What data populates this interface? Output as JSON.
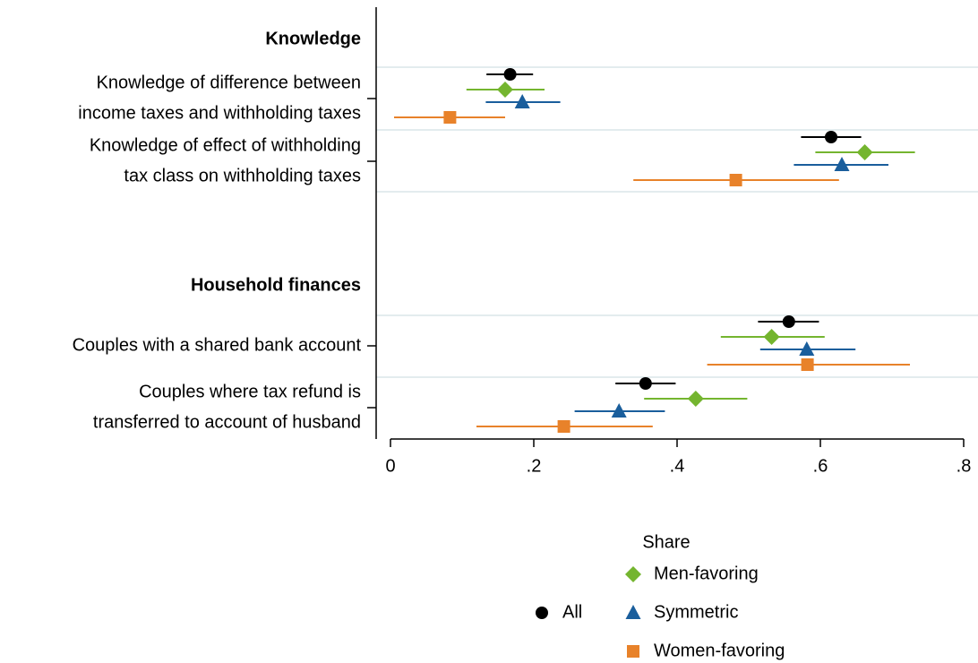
{
  "chart_data": {
    "type": "dot-ci",
    "x_label": "Share",
    "groups": [
      {
        "title": "Knowledge",
        "categories": [
          [
            "Knowledge of difference between",
            "income taxes and withholding taxes"
          ],
          [
            "Knowledge of effect of withholding",
            "tax class on withholding taxes"
          ]
        ]
      },
      {
        "title": "Household finances",
        "categories": [
          [
            "Couples with a shared bank account"
          ],
          [
            "Couples where tax refund is",
            "transferred to account of husband"
          ]
        ]
      }
    ],
    "series": [
      {
        "name": "All",
        "color": "#000000",
        "marker": "circle",
        "values": [
          [
            0.167,
            0.615
          ],
          [
            0.556,
            0.356
          ]
        ],
        "lower": [
          [
            0.134,
            0.573
          ],
          [
            0.513,
            0.314
          ]
        ],
        "upper": [
          [
            0.199,
            0.657
          ],
          [
            0.598,
            0.398
          ]
        ]
      },
      {
        "name": "Men-favoring",
        "color": "#74b52f",
        "marker": "diamond",
        "values": [
          [
            0.16,
            0.662
          ],
          [
            0.532,
            0.426
          ]
        ],
        "lower": [
          [
            0.106,
            0.593
          ],
          [
            0.461,
            0.354
          ]
        ],
        "upper": [
          [
            0.215,
            0.732
          ],
          [
            0.606,
            0.498
          ]
        ]
      },
      {
        "name": "Symmetric",
        "color": "#1a5e9c",
        "marker": "triangle",
        "values": [
          [
            0.184,
            0.63
          ],
          [
            0.581,
            0.319
          ]
        ],
        "lower": [
          [
            0.133,
            0.563
          ],
          [
            0.516,
            0.257
          ]
        ],
        "upper": [
          [
            0.237,
            0.695
          ],
          [
            0.649,
            0.383
          ]
        ]
      },
      {
        "name": "Women-favoring",
        "color": "#e8822a",
        "marker": "square",
        "values": [
          [
            0.083,
            0.482
          ],
          [
            0.582,
            0.242
          ]
        ],
        "lower": [
          [
            0.005,
            0.339
          ],
          [
            0.442,
            0.12
          ]
        ],
        "upper": [
          [
            0.16,
            0.626
          ],
          [
            0.725,
            0.366
          ]
        ]
      }
    ],
    "xlim": [
      -0.02,
      0.82
    ],
    "xticks": [
      0,
      {
        "value": 0.2,
        "label": ".2"
      },
      {
        "value": 0.4,
        "label": ".4"
      },
      {
        "value": 0.6,
        "label": ".6"
      },
      {
        "value": 0.8,
        "label": ".8"
      }
    ]
  }
}
